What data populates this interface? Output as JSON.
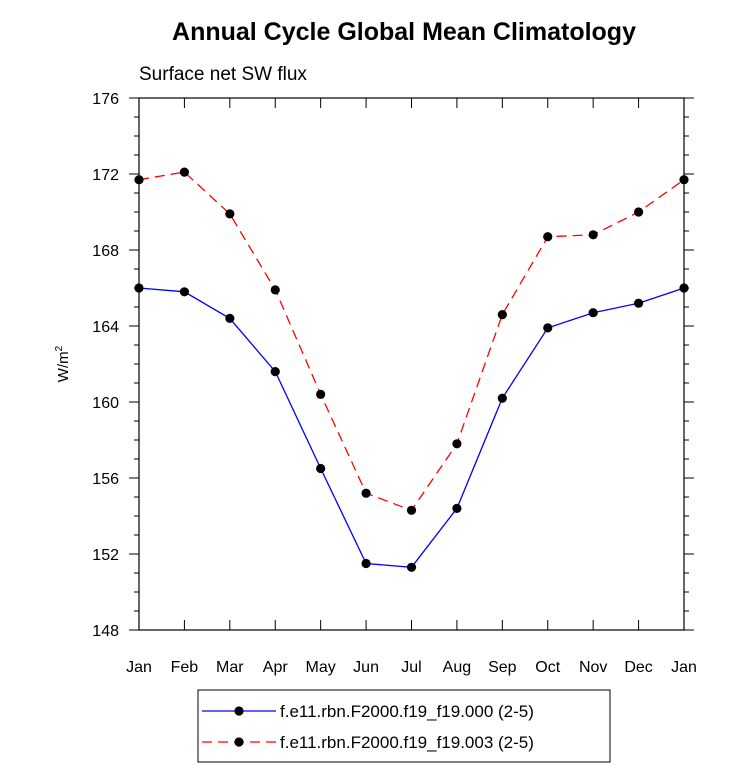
{
  "chart_data": {
    "type": "line",
    "title": "Annual Cycle Global Mean Climatology",
    "subtitle": "Surface net SW flux",
    "ylabel_base": "W/m",
    "ylabel_sup": "2",
    "xlabel": "",
    "categories": [
      "Jan",
      "Feb",
      "Mar",
      "Apr",
      "May",
      "Jun",
      "Jul",
      "Aug",
      "Sep",
      "Oct",
      "Nov",
      "Dec",
      "Jan"
    ],
    "ylim": [
      148,
      176
    ],
    "yticks": [
      148,
      152,
      156,
      160,
      164,
      168,
      172,
      176
    ],
    "y_minor_step": 1,
    "grid": false,
    "legend_position": "bottom",
    "series": [
      {
        "name": "f.e11.rbn.F2000.f19_f19.000 (2-5)",
        "color": "#0000ff",
        "dash": "solid",
        "values": [
          166.0,
          165.8,
          164.4,
          161.6,
          156.5,
          151.5,
          151.3,
          154.4,
          160.2,
          163.9,
          164.7,
          165.2,
          166.0
        ]
      },
      {
        "name": "f.e11.rbn.F2000.f19_f19.003 (2-5)",
        "color": "#ff0000",
        "dash": "dashed",
        "values": [
          171.7,
          172.1,
          169.9,
          165.9,
          160.4,
          155.2,
          154.3,
          157.8,
          164.6,
          168.7,
          168.8,
          170.0,
          171.7
        ]
      }
    ]
  }
}
